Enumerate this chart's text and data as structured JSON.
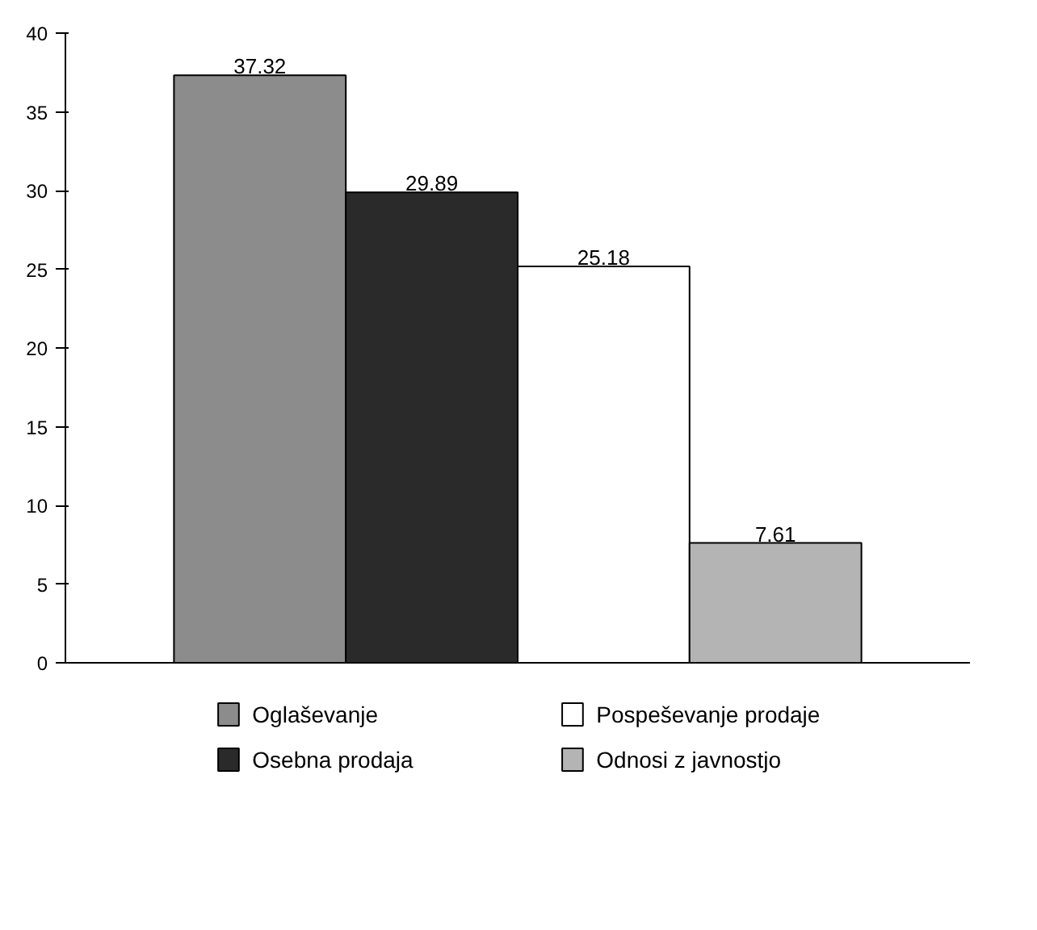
{
  "chart_data": {
    "type": "bar",
    "categories": [
      null
    ],
    "series": [
      {
        "name": "Oglaševanje",
        "color": "#8c8c8c",
        "values": [
          37.32
        ]
      },
      {
        "name": "Osebna prodaja",
        "color": "#2a2a2a",
        "values": [
          29.89
        ]
      },
      {
        "name": "Pospeševanje prodaje",
        "color": "#ffffff",
        "values": [
          25.18
        ]
      },
      {
        "name": "Odnosi z javnostjo",
        "color": "#b4b4b4",
        "values": [
          7.61
        ]
      }
    ],
    "ylim": [
      0,
      40
    ],
    "yticks": [
      0,
      5,
      10,
      15,
      20,
      25,
      30,
      35,
      40
    ],
    "grid": false,
    "legend": "bottom",
    "data_labels": true
  }
}
